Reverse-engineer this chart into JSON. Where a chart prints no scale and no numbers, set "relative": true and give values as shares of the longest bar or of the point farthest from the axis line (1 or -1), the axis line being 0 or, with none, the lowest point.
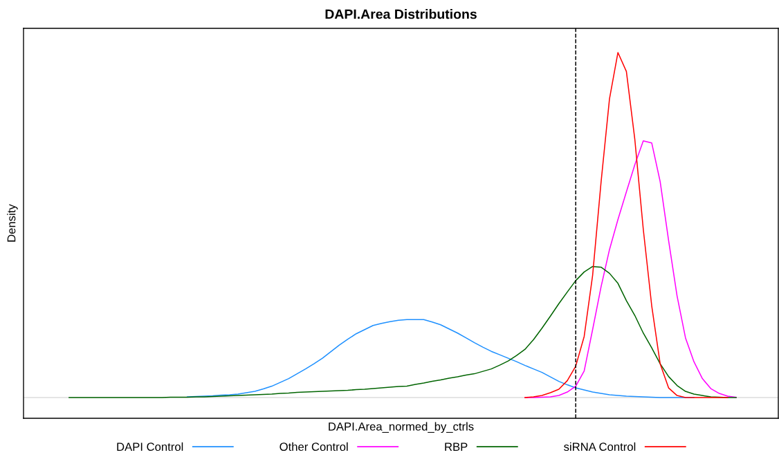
{
  "chart_data": {
    "type": "line",
    "title": "DAPI.Area Distributions",
    "xlabel": "DAPI.Area_normed_by_ctrls",
    "ylabel": "Density",
    "relative": true,
    "legend": "bottom",
    "categories": [
      null,
      null,
      null,
      null,
      null,
      null,
      null,
      null,
      null,
      null,
      null,
      null,
      null,
      null,
      null,
      null,
      null,
      null,
      null,
      null,
      null,
      null,
      null,
      null,
      null,
      null,
      null,
      null,
      null,
      null,
      null,
      null,
      null,
      null,
      null,
      null,
      null,
      null,
      null,
      null,
      null,
      null,
      null,
      null,
      null,
      null,
      null,
      null,
      null,
      null,
      null,
      null,
      null,
      null,
      null,
      null,
      null,
      null,
      null,
      null,
      null,
      null,
      null,
      null,
      null,
      null,
      null,
      null,
      null,
      null,
      null,
      null,
      null,
      null,
      null,
      null,
      null,
      null,
      null,
      null
    ],
    "series": [
      {
        "name": "DAPI Control",
        "color": "#1e90ff",
        "values": [
          null,
          null,
          null,
          null,
          null,
          null,
          null,
          null,
          null,
          null,
          null,
          null,
          null,
          null,
          0.002,
          0.003,
          0.004,
          0.005,
          0.007,
          0.008,
          0.01,
          0.014,
          0.018,
          0.025,
          0.033,
          0.044,
          0.055,
          0.069,
          0.083,
          0.098,
          0.114,
          0.133,
          0.152,
          0.169,
          0.185,
          0.197,
          0.209,
          0.215,
          0.22,
          0.224,
          0.226,
          0.226,
          0.226,
          0.219,
          0.211,
          0.199,
          0.187,
          0.173,
          0.159,
          0.146,
          0.134,
          0.124,
          0.114,
          0.104,
          0.093,
          0.083,
          0.073,
          0.06,
          0.047,
          0.037,
          0.028,
          0.022,
          0.016,
          0.012,
          0.008,
          0.006,
          0.004,
          0.003,
          0.002,
          0.001,
          0,
          0,
          0,
          0,
          0,
          null,
          null,
          null,
          null,
          null
        ]
      },
      {
        "name": "Other Control",
        "color": "#ff00ff",
        "values": [
          null,
          null,
          null,
          null,
          null,
          null,
          null,
          null,
          null,
          null,
          null,
          null,
          null,
          null,
          null,
          null,
          null,
          null,
          null,
          null,
          null,
          null,
          null,
          null,
          null,
          null,
          null,
          null,
          null,
          null,
          null,
          null,
          null,
          null,
          null,
          null,
          null,
          null,
          null,
          null,
          null,
          null,
          null,
          null,
          null,
          null,
          null,
          null,
          null,
          null,
          null,
          null,
          null,
          null,
          0,
          0,
          0.001,
          0.002,
          0.006,
          0.016,
          0.033,
          0.077,
          0.197,
          0.321,
          0.429,
          0.516,
          0.596,
          0.675,
          0.744,
          0.738,
          0.626,
          0.455,
          0.295,
          0.173,
          0.104,
          0.055,
          0.026,
          0.012,
          0.004,
          0.001
        ]
      },
      {
        "name": "RBP",
        "color": "#006400",
        "values": [
          0,
          0,
          0,
          0,
          0,
          0,
          0,
          0,
          0,
          0,
          0,
          0,
          0.001,
          0.001,
          0.001,
          0.002,
          0.002,
          0.003,
          0.004,
          0.005,
          0.006,
          0.007,
          0.008,
          0.009,
          0.01,
          0.012,
          0.013,
          0.015,
          0.016,
          0.017,
          0.018,
          0.019,
          0.02,
          0.021,
          0.023,
          0.024,
          0.026,
          0.028,
          0.03,
          0.032,
          0.033,
          0.038,
          0.042,
          0.047,
          0.051,
          0.056,
          0.06,
          0.065,
          0.069,
          0.076,
          0.083,
          0.094,
          0.106,
          0.122,
          0.14,
          0.168,
          0.201,
          0.236,
          0.272,
          0.306,
          0.339,
          0.364,
          0.38,
          0.378,
          0.36,
          0.331,
          0.281,
          0.238,
          0.187,
          0.144,
          0.098,
          0.061,
          0.035,
          0.018,
          0.01,
          0.006,
          0.002,
          0.001,
          0,
          0
        ]
      },
      {
        "name": "siRNA Control",
        "color": "#ff0000",
        "values": [
          null,
          null,
          null,
          null,
          null,
          null,
          null,
          null,
          null,
          null,
          null,
          null,
          null,
          null,
          null,
          null,
          null,
          null,
          null,
          null,
          null,
          null,
          null,
          null,
          null,
          null,
          null,
          null,
          null,
          null,
          null,
          null,
          null,
          null,
          null,
          null,
          null,
          null,
          null,
          null,
          null,
          null,
          null,
          null,
          null,
          null,
          null,
          null,
          null,
          null,
          null,
          null,
          null,
          null,
          0,
          0.002,
          0.006,
          0.014,
          0.024,
          0.049,
          0.091,
          0.177,
          0.354,
          0.624,
          0.866,
          1,
          0.945,
          0.748,
          0.488,
          0.266,
          0.098,
          0.028,
          0.006,
          0,
          0,
          0,
          0,
          0,
          0,
          null
        ]
      }
    ]
  }
}
